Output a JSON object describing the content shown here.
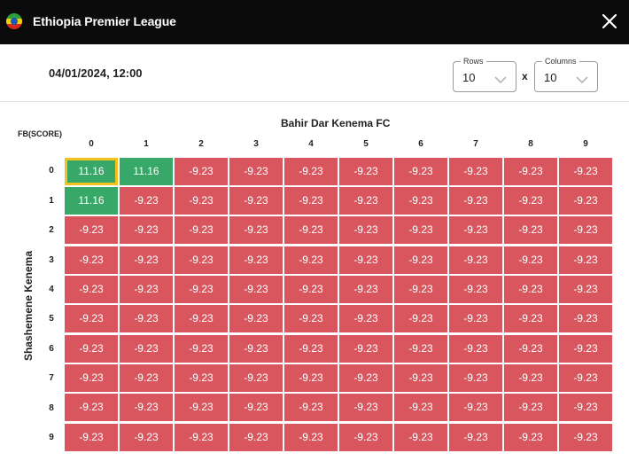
{
  "header": {
    "title": "Ethiopia Premier League",
    "flag_icon": "ethiopia-flag-icon",
    "close_icon": "close-icon"
  },
  "match": {
    "datetime": "04/01/2024, 12:00"
  },
  "controls": {
    "rows_label": "Rows",
    "rows_value": "10",
    "separator": "x",
    "columns_label": "Columns",
    "columns_value": "10",
    "chevron_icon": "chevron-down-icon"
  },
  "grid": {
    "corner_label": "FB(SCORE)",
    "column_team": "Bahir Dar Kenema FC",
    "row_team": "Shashemene Kenema",
    "column_headers": [
      "0",
      "1",
      "2",
      "3",
      "4",
      "5",
      "6",
      "7",
      "8",
      "9"
    ],
    "row_headers": [
      "0",
      "1",
      "2",
      "3",
      "4",
      "5",
      "6",
      "7",
      "8",
      "9"
    ],
    "selected_cell": [
      0,
      0
    ],
    "colors": {
      "positive": "#38a868",
      "negative": "#d9565e",
      "selected_border": "#f3c21d"
    },
    "cells": [
      [
        "11.16",
        "11.16",
        "-9.23",
        "-9.23",
        "-9.23",
        "-9.23",
        "-9.23",
        "-9.23",
        "-9.23",
        "-9.23"
      ],
      [
        "11.16",
        "-9.23",
        "-9.23",
        "-9.23",
        "-9.23",
        "-9.23",
        "-9.23",
        "-9.23",
        "-9.23",
        "-9.23"
      ],
      [
        "-9.23",
        "-9.23",
        "-9.23",
        "-9.23",
        "-9.23",
        "-9.23",
        "-9.23",
        "-9.23",
        "-9.23",
        "-9.23"
      ],
      [
        "-9.23",
        "-9.23",
        "-9.23",
        "-9.23",
        "-9.23",
        "-9.23",
        "-9.23",
        "-9.23",
        "-9.23",
        "-9.23"
      ],
      [
        "-9.23",
        "-9.23",
        "-9.23",
        "-9.23",
        "-9.23",
        "-9.23",
        "-9.23",
        "-9.23",
        "-9.23",
        "-9.23"
      ],
      [
        "-9.23",
        "-9.23",
        "-9.23",
        "-9.23",
        "-9.23",
        "-9.23",
        "-9.23",
        "-9.23",
        "-9.23",
        "-9.23"
      ],
      [
        "-9.23",
        "-9.23",
        "-9.23",
        "-9.23",
        "-9.23",
        "-9.23",
        "-9.23",
        "-9.23",
        "-9.23",
        "-9.23"
      ],
      [
        "-9.23",
        "-9.23",
        "-9.23",
        "-9.23",
        "-9.23",
        "-9.23",
        "-9.23",
        "-9.23",
        "-9.23",
        "-9.23"
      ],
      [
        "-9.23",
        "-9.23",
        "-9.23",
        "-9.23",
        "-9.23",
        "-9.23",
        "-9.23",
        "-9.23",
        "-9.23",
        "-9.23"
      ],
      [
        "-9.23",
        "-9.23",
        "-9.23",
        "-9.23",
        "-9.23",
        "-9.23",
        "-9.23",
        "-9.23",
        "-9.23",
        "-9.23"
      ]
    ]
  }
}
